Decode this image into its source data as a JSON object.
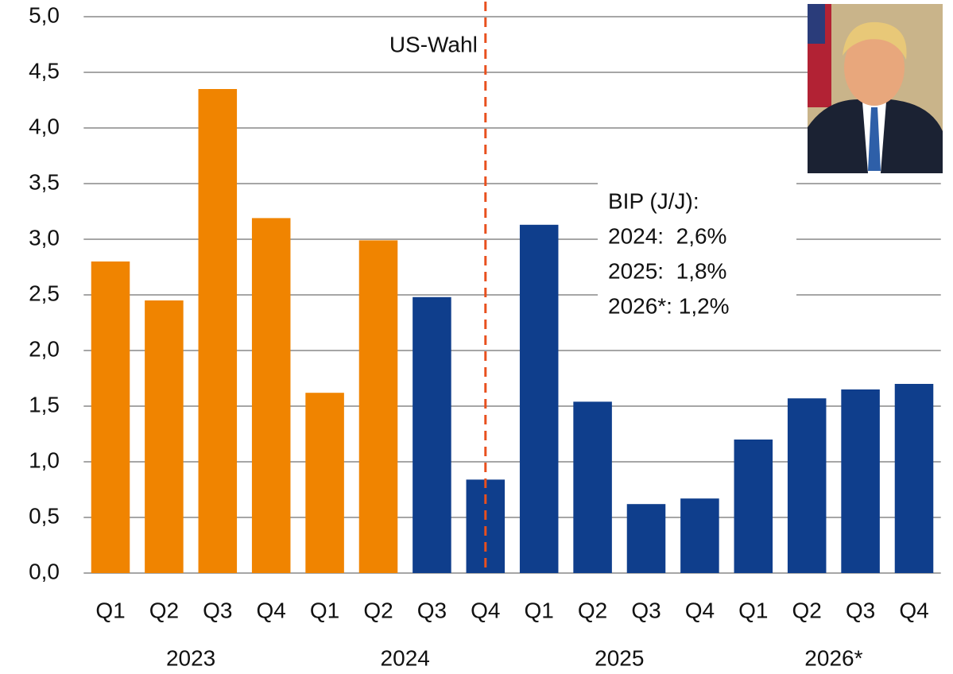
{
  "chart_data": {
    "type": "bar",
    "categories": [
      "Q1",
      "Q2",
      "Q3",
      "Q4",
      "Q1",
      "Q2",
      "Q3",
      "Q4",
      "Q1",
      "Q2",
      "Q3",
      "Q4",
      "Q1",
      "Q2",
      "Q3",
      "Q4"
    ],
    "x_groups": [
      "2023",
      "2024",
      "2025",
      "2026*"
    ],
    "values": [
      2.8,
      2.45,
      4.35,
      3.19,
      1.62,
      2.99,
      2.48,
      0.84,
      3.13,
      1.54,
      0.62,
      0.67,
      1.2,
      1.57,
      1.65,
      1.7
    ],
    "colors": [
      "#f08400",
      "#f08400",
      "#f08400",
      "#f08400",
      "#f08400",
      "#f08400",
      "#0f3e8c",
      "#0f3e8c",
      "#0f3e8c",
      "#0f3e8c",
      "#0f3e8c",
      "#0f3e8c",
      "#0f3e8c",
      "#0f3e8c",
      "#0f3e8c",
      "#0f3e8c"
    ],
    "ylim": [
      0,
      5
    ],
    "yticks": [
      {
        "value": 0,
        "label": "0,0"
      },
      {
        "value": 0.5,
        "label": "0,5"
      },
      {
        "value": 1,
        "label": "1,0"
      },
      {
        "value": 1.5,
        "label": "1,5"
      },
      {
        "value": 2,
        "label": "2,0"
      },
      {
        "value": 2.5,
        "label": "2,5"
      },
      {
        "value": 3,
        "label": "3,0"
      },
      {
        "value": 3.5,
        "label": "3,5"
      },
      {
        "value": 4,
        "label": "4,0"
      },
      {
        "value": 4.5,
        "label": "4,5"
      },
      {
        "value": 5,
        "label": "5,0"
      }
    ],
    "grid": true,
    "annotation": {
      "text": "US-Wahl",
      "color": "#e8501e"
    },
    "text_box": [
      "BIP (J/J):",
      "2024:  2,6%",
      "2025:  1,8%",
      "2026*: 1,2%"
    ]
  }
}
